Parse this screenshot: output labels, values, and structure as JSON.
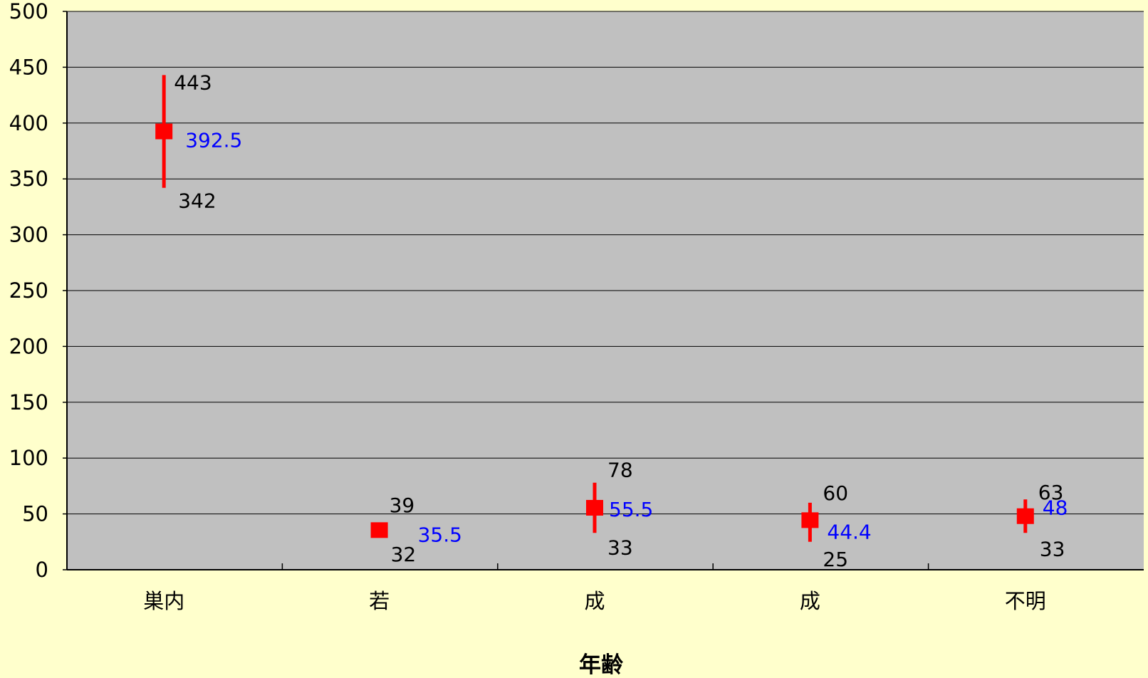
{
  "chart_data": {
    "type": "stock",
    "title": "",
    "xlabel": "年齢",
    "ylabel": "",
    "ylim": [
      0,
      500
    ],
    "yticks": [
      0,
      50,
      100,
      150,
      200,
      250,
      300,
      350,
      400,
      450,
      500
    ],
    "grid": true,
    "legend": "none",
    "categories": [
      "巣内",
      "若",
      "成",
      "成",
      "不明"
    ],
    "series": [
      {
        "key": "high",
        "values": [
          443,
          39,
          78,
          60,
          63
        ]
      },
      {
        "key": "low",
        "values": [
          342,
          32,
          33,
          25,
          33
        ]
      },
      {
        "key": "mean",
        "values": [
          392.5,
          35.5,
          55.5,
          44.4,
          48
        ]
      }
    ],
    "labels": {
      "high": [
        "443",
        "39",
        "78",
        "60",
        "63"
      ],
      "low": [
        "342",
        "32",
        "33",
        "25",
        "33"
      ],
      "mean": [
        "392.5",
        "35.5",
        "55.5",
        "44.4",
        "48"
      ]
    }
  },
  "colors": {
    "page_background": "#ffffcc",
    "plot_background": "#c0c0c0",
    "gridline": "#000000",
    "marker": "#ff0000",
    "range_line": "#ff0000",
    "mean_label": "#0000ff",
    "range_label": "#000000"
  }
}
